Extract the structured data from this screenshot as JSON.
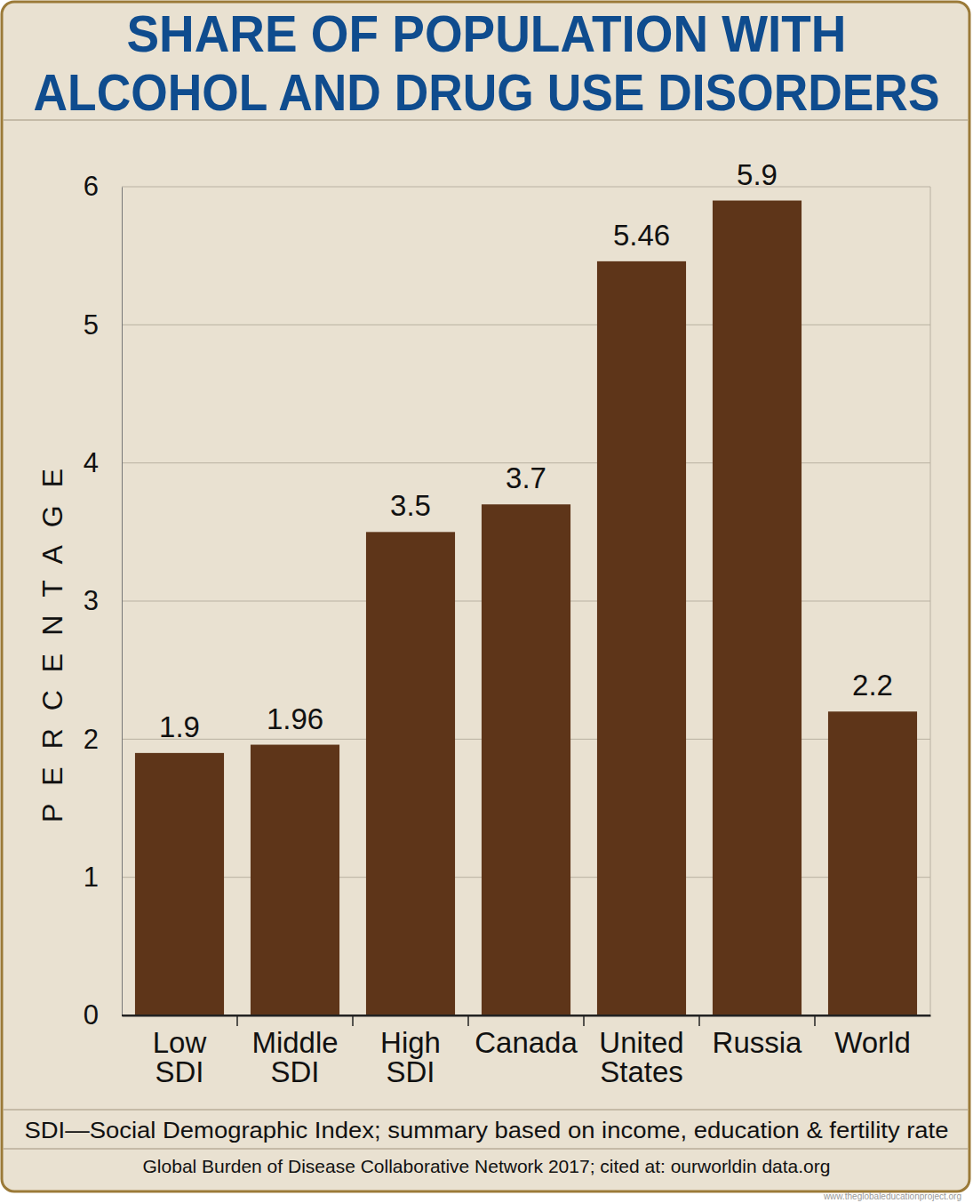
{
  "chart_data": {
    "type": "bar",
    "title": [
      "SHARE OF POPULATION WITH",
      "ALCOHOL AND DRUG USE DISORDERS"
    ],
    "ylabel": "PERCENTAGE",
    "categories": [
      "Low SDI",
      "Middle SDI",
      "High SDI",
      "Canada",
      "United States",
      "Russia",
      "World"
    ],
    "values": [
      1.9,
      1.96,
      3.5,
      3.7,
      5.46,
      5.9,
      2.2
    ],
    "color": "#5e3519",
    "ylim": [
      0,
      6
    ],
    "yticks": [
      0,
      1,
      2,
      3,
      4,
      5,
      6
    ],
    "grid": true,
    "data_labels": true,
    "footnote": "SDI—Social Demographic Index; summary based on income, education & fertility rate",
    "source": "Global Burden of Disease Collaborative Network 2017; cited at: ourworldin data.org",
    "watermark": "www.theglobaleducationproject.org"
  }
}
